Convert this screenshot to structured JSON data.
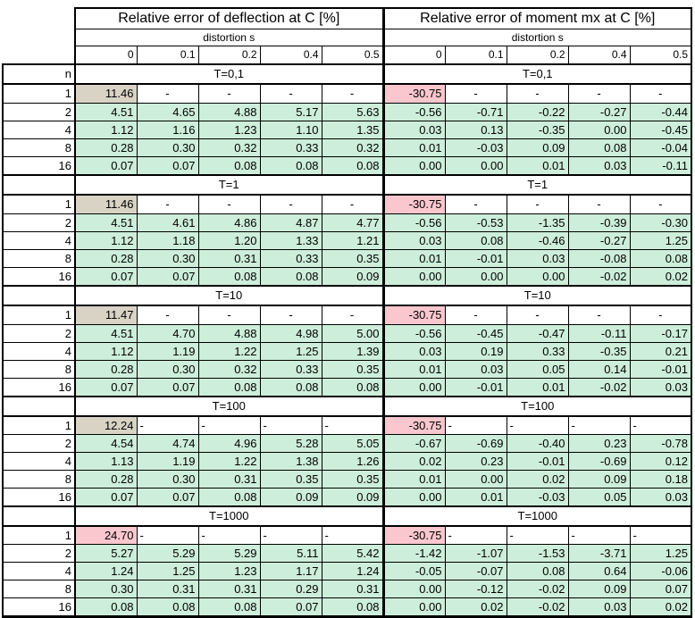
{
  "colors": {
    "green": "#cdeeda",
    "tan": "#d9d3c5",
    "pink": "#fac7ce",
    "border": "#000000",
    "background": "#ffffff"
  },
  "table": {
    "title_left": "Relative error of deflection at C [%]",
    "title_right": "Relative error of moment mx at C [%]",
    "distortion_label": "distortion s",
    "col_headers": [
      "0",
      "0.1",
      "0.2",
      "0.4",
      "0.5"
    ],
    "n_label": "n",
    "n_values": [
      "1",
      "2",
      "4",
      "8",
      "16"
    ],
    "sections": [
      {
        "t_label": "T=0,1",
        "dash_align": "center",
        "n1_left_color": "tan",
        "n1_right_color": "pink",
        "deflection": [
          [
            "11.46",
            "-",
            "-",
            "-",
            "-"
          ],
          [
            "4.51",
            "4.65",
            "4.88",
            "5.17",
            "5.63"
          ],
          [
            "1.12",
            "1.16",
            "1.23",
            "1.10",
            "1.35"
          ],
          [
            "0.28",
            "0.30",
            "0.32",
            "0.33",
            "0.32"
          ],
          [
            "0.07",
            "0.07",
            "0.08",
            "0.08",
            "0.08"
          ]
        ],
        "moment": [
          [
            "-30.75",
            "-",
            "-",
            "-",
            "-"
          ],
          [
            "-0.56",
            "-0.71",
            "-0.22",
            "-0.27",
            "-0.44"
          ],
          [
            "0.03",
            "0.13",
            "-0.35",
            "0.00",
            "-0.45"
          ],
          [
            "0.01",
            "-0.03",
            "0.09",
            "0.08",
            "-0.04"
          ],
          [
            "0.00",
            "0.00",
            "0.01",
            "0.03",
            "-0.11"
          ]
        ]
      },
      {
        "t_label": "T=1",
        "dash_align": "center",
        "n1_left_color": "tan",
        "n1_right_color": "pink",
        "deflection": [
          [
            "11.46",
            "-",
            "-",
            "-",
            "-"
          ],
          [
            "4.51",
            "4.61",
            "4.86",
            "4.87",
            "4.77"
          ],
          [
            "1.12",
            "1.18",
            "1.20",
            "1.33",
            "1.21"
          ],
          [
            "0.28",
            "0.30",
            "0.31",
            "0.33",
            "0.35"
          ],
          [
            "0.07",
            "0.07",
            "0.08",
            "0.08",
            "0.09"
          ]
        ],
        "moment": [
          [
            "-30.75",
            "-",
            "-",
            "-",
            "-"
          ],
          [
            "-0.56",
            "-0.53",
            "-1.35",
            "-0.39",
            "-0.30"
          ],
          [
            "0.03",
            "0.08",
            "-0.46",
            "-0.27",
            "1.25"
          ],
          [
            "0.01",
            "-0.01",
            "0.03",
            "-0.08",
            "0.08"
          ],
          [
            "0.00",
            "0.00",
            "0.00",
            "-0.02",
            "0.02"
          ]
        ]
      },
      {
        "t_label": "T=10",
        "dash_align": "center",
        "n1_left_color": "tan",
        "n1_right_color": "pink",
        "deflection": [
          [
            "11.47",
            "-",
            "-",
            "-",
            "-"
          ],
          [
            "4.51",
            "4.70",
            "4.88",
            "4.98",
            "5.00"
          ],
          [
            "1.12",
            "1.19",
            "1.22",
            "1.25",
            "1.39"
          ],
          [
            "0.28",
            "0.30",
            "0.32",
            "0.33",
            "0.35"
          ],
          [
            "0.07",
            "0.07",
            "0.08",
            "0.08",
            "0.08"
          ]
        ],
        "moment": [
          [
            "-30.75",
            "-",
            "-",
            "-",
            "-"
          ],
          [
            "-0.56",
            "-0.45",
            "-0.47",
            "-0.11",
            "-0.17"
          ],
          [
            "0.03",
            "0.19",
            "0.33",
            "-0.35",
            "0.21"
          ],
          [
            "0.01",
            "0.03",
            "0.05",
            "0.14",
            "-0.01"
          ],
          [
            "0.00",
            "-0.01",
            "0.01",
            "-0.02",
            "0.03"
          ]
        ]
      },
      {
        "t_label": "T=100",
        "dash_align": "left",
        "n1_left_color": "tan",
        "n1_right_color": "pink",
        "deflection": [
          [
            "12.24",
            "-",
            "-",
            "-",
            "-"
          ],
          [
            "4.54",
            "4.74",
            "4.96",
            "5.28",
            "5.05"
          ],
          [
            "1.13",
            "1.19",
            "1.22",
            "1.38",
            "1.26"
          ],
          [
            "0.28",
            "0.30",
            "0.31",
            "0.35",
            "0.35"
          ],
          [
            "0.07",
            "0.07",
            "0.08",
            "0.09",
            "0.09"
          ]
        ],
        "moment": [
          [
            "-30.75",
            "-",
            "-",
            "-",
            "-"
          ],
          [
            "-0.67",
            "-0.69",
            "-0.40",
            "0.23",
            "-0.78"
          ],
          [
            "0.02",
            "0.23",
            "-0.01",
            "-0.69",
            "0.12"
          ],
          [
            "0.01",
            "0.00",
            "0.02",
            "0.09",
            "0.18"
          ],
          [
            "0.00",
            "0.01",
            "-0.03",
            "0.05",
            "0.03"
          ]
        ]
      },
      {
        "t_label": "T=1000",
        "dash_align": "left",
        "n1_left_color": "pink",
        "n1_right_color": "pink",
        "deflection": [
          [
            "24.70",
            "-",
            "-",
            "-",
            "-"
          ],
          [
            "5.27",
            "5.29",
            "5.29",
            "5.11",
            "5.42"
          ],
          [
            "1.24",
            "1.25",
            "1.23",
            "1.17",
            "1.24"
          ],
          [
            "0.30",
            "0.31",
            "0.31",
            "0.29",
            "0.31"
          ],
          [
            "0.08",
            "0.08",
            "0.08",
            "0.07",
            "0.08"
          ]
        ],
        "moment": [
          [
            "-30.75",
            "-",
            "-",
            "-",
            "-"
          ],
          [
            "-1.42",
            "-1.07",
            "-1.53",
            "-3.71",
            "1.25"
          ],
          [
            "-0.05",
            "-0.07",
            "0.08",
            "0.64",
            "-0.06"
          ],
          [
            "0.00",
            "-0.12",
            "-0.02",
            "0.09",
            "0.07"
          ],
          [
            "0.00",
            "0.02",
            "-0.02",
            "0.03",
            "0.02"
          ]
        ]
      }
    ]
  }
}
